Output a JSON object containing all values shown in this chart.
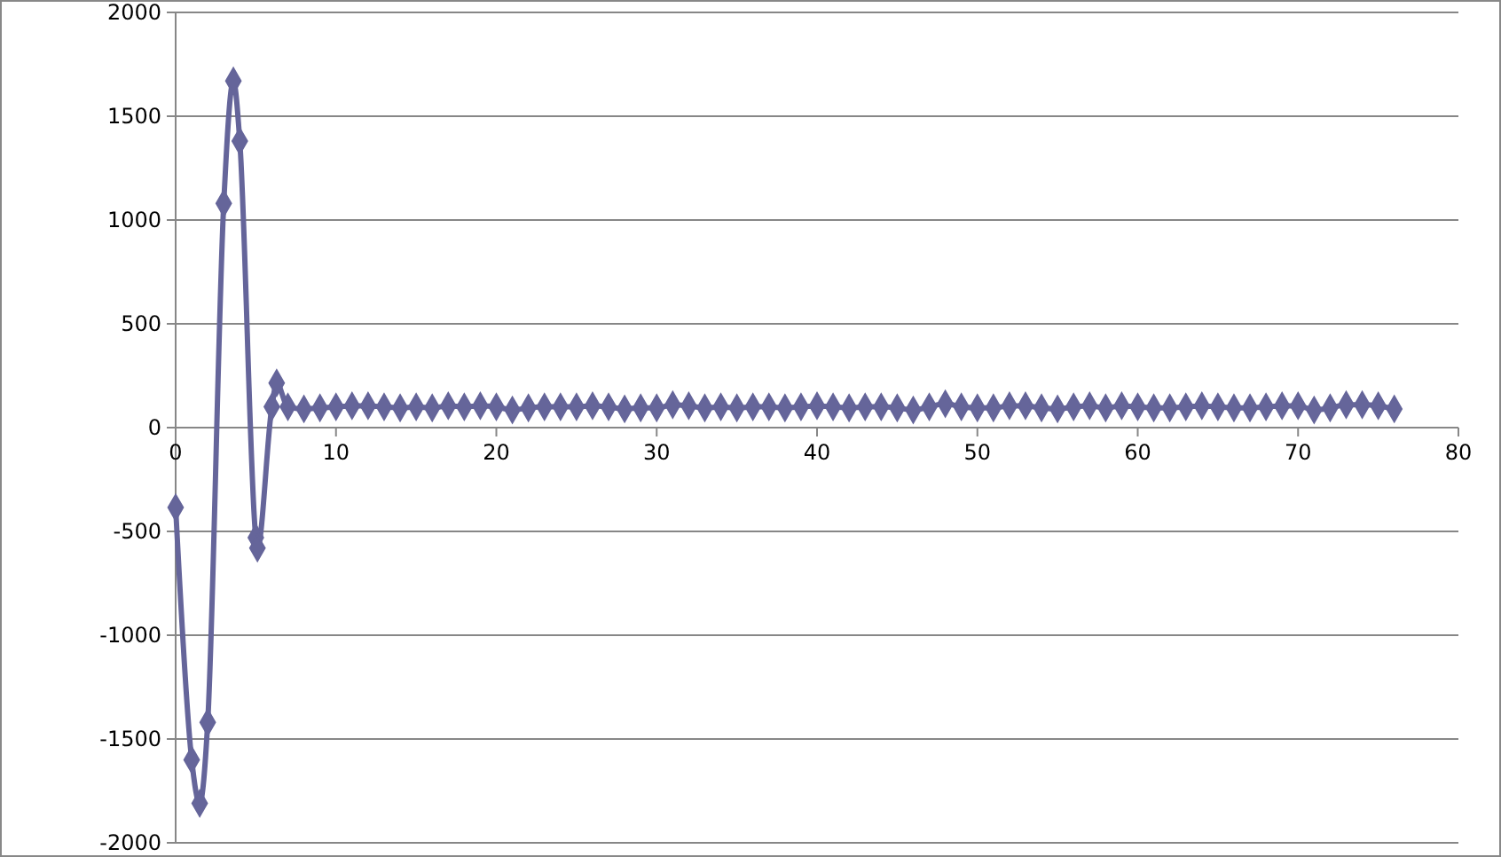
{
  "chart_data": {
    "type": "line",
    "xlim": [
      0,
      80
    ],
    "xticks": [
      0,
      10,
      20,
      30,
      40,
      50,
      60,
      70,
      80
    ],
    "ylim": [
      -2000,
      2000
    ],
    "yticks": [
      -2000,
      -1500,
      -1000,
      -500,
      0,
      500,
      1000,
      1500,
      2000
    ],
    "grid": "y",
    "marker": "diamond",
    "line_style": "solid",
    "series": [
      {
        "color": "#65659a",
        "x": [
          0,
          1,
          1.5,
          2,
          3,
          3.6,
          4,
          5,
          5.1,
          6,
          6.3,
          7,
          8,
          9,
          10,
          11,
          12,
          13,
          14,
          15,
          16,
          17,
          18,
          19,
          20,
          21,
          22,
          23,
          24,
          25,
          26,
          27,
          28,
          29,
          30,
          31,
          32,
          33,
          34,
          35,
          36,
          37,
          38,
          39,
          40,
          41,
          42,
          43,
          44,
          45,
          46,
          47,
          48,
          49,
          50,
          51,
          52,
          53,
          54,
          55,
          56,
          57,
          58,
          59,
          60,
          61,
          62,
          63,
          64,
          65,
          66,
          67,
          68,
          69,
          70,
          71,
          72,
          73,
          74,
          75,
          76
        ],
        "values": [
          -385,
          -1600,
          -1810,
          -1420,
          1080,
          1670,
          1380,
          -530,
          -580,
          100,
          215,
          100,
          90,
          95,
          100,
          105,
          105,
          100,
          95,
          100,
          95,
          105,
          100,
          105,
          100,
          85,
          95,
          100,
          100,
          100,
          105,
          100,
          90,
          95,
          95,
          110,
          105,
          95,
          100,
          95,
          100,
          100,
          95,
          100,
          105,
          100,
          95,
          100,
          100,
          95,
          85,
          100,
          115,
          100,
          95,
          95,
          105,
          105,
          95,
          90,
          100,
          105,
          95,
          105,
          100,
          95,
          95,
          100,
          105,
          100,
          95,
          95,
          100,
          105,
          105,
          85,
          95,
          110,
          110,
          105,
          90
        ]
      }
    ]
  }
}
